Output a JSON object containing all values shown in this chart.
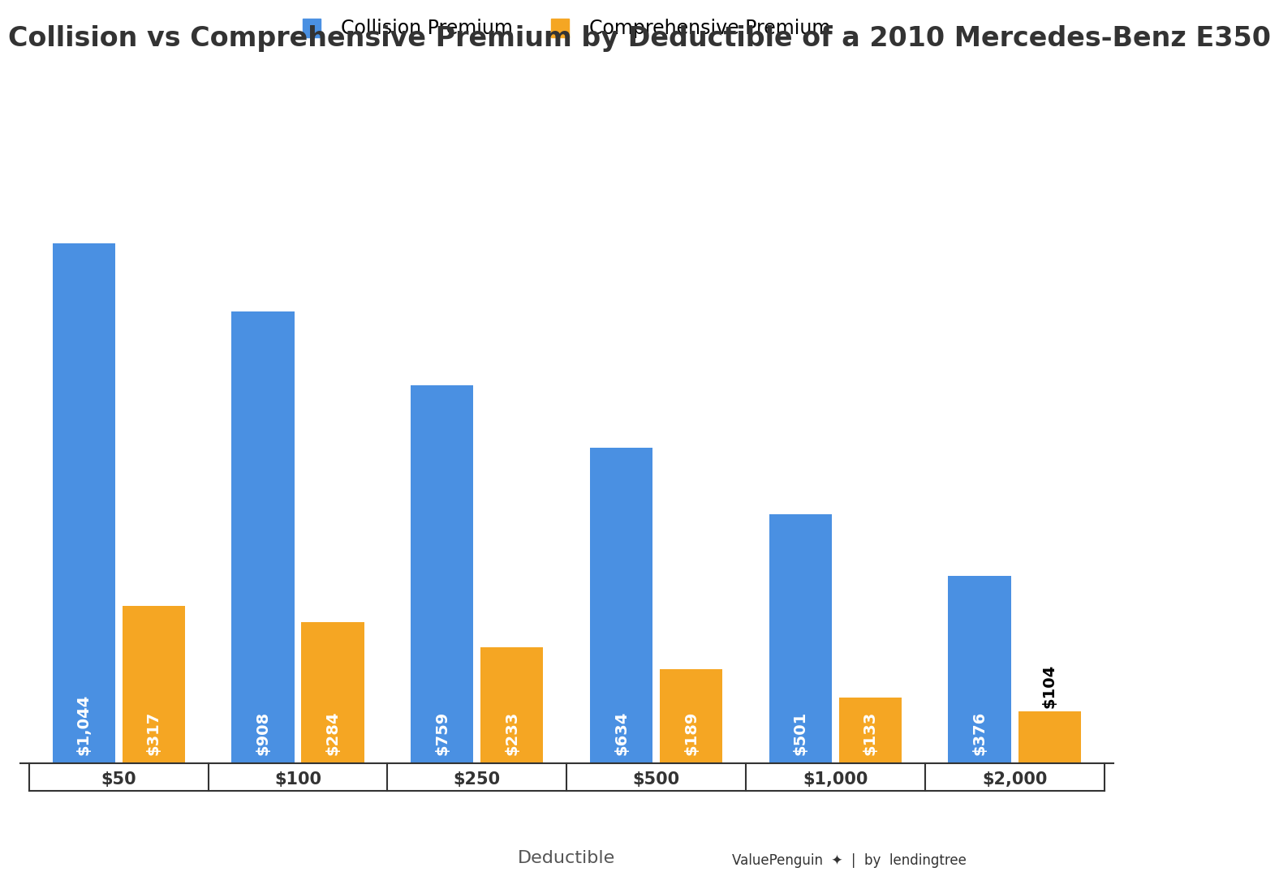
{
  "title": "Collision vs Comprehensive Premium by Deductible of a 2010 Mercedes-Benz E350",
  "xlabel": "Deductible",
  "categories": [
    "$50",
    "$100",
    "$250",
    "$500",
    "$1,000",
    "$2,000"
  ],
  "collision_values": [
    1044,
    908,
    759,
    634,
    501,
    376
  ],
  "comprehensive_values": [
    317,
    284,
    233,
    189,
    133,
    104
  ],
  "collision_labels": [
    "$1,044",
    "$908",
    "$759",
    "$634",
    "$501",
    "$376"
  ],
  "comprehensive_labels": [
    "$317",
    "$284",
    "$233",
    "$189",
    "$133",
    "$104"
  ],
  "collision_color": "#4A90E2",
  "comprehensive_color": "#F5A623",
  "bar_label_color_white": "#ffffff",
  "bar_label_color_black": "#000000",
  "background_color": "#ffffff",
  "grid_color": "#cccccc",
  "title_fontsize": 24,
  "legend_fontsize": 17,
  "tick_fontsize": 15,
  "bar_label_fontsize": 14,
  "xlabel_fontsize": 16,
  "ylim": [
    0,
    1200
  ],
  "bar_width": 0.35,
  "bar_gap": 0.04
}
